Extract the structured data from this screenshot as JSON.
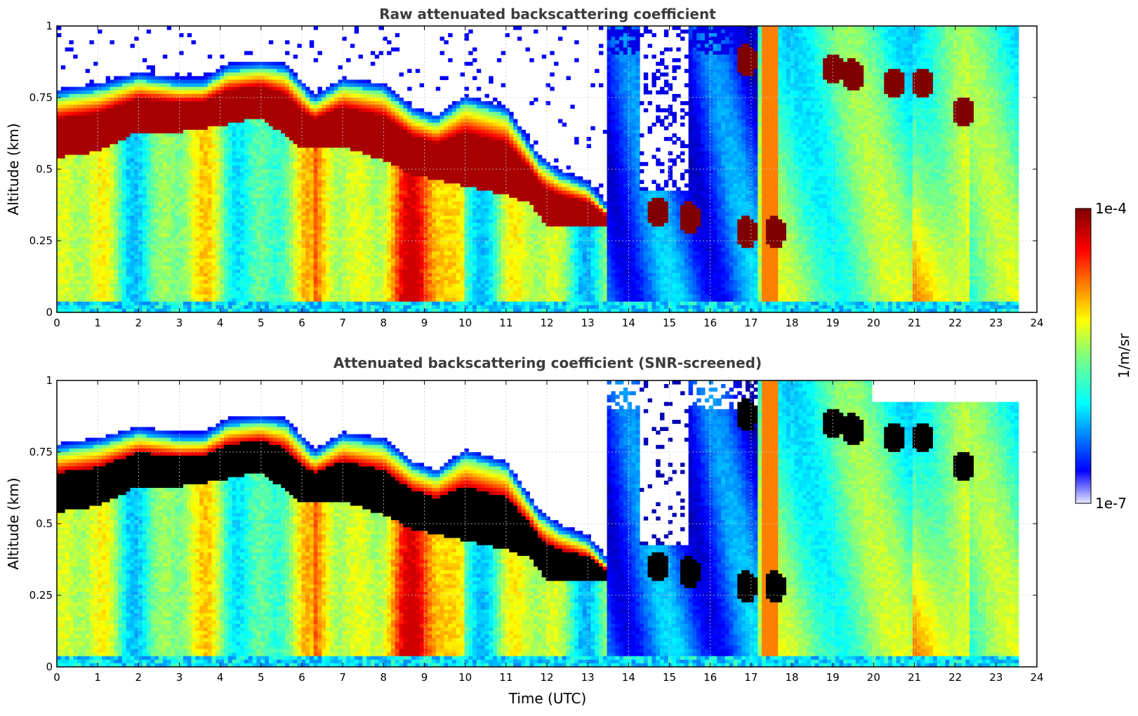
{
  "chart_data": [
    {
      "type": "heatmap",
      "title": "Raw attenuated backscattering coefficient",
      "xlabel": "",
      "ylabel": "Altitude (km)",
      "xlim": [
        0,
        24
      ],
      "ylim": [
        0,
        1
      ],
      "xticks": [
        "0",
        "1",
        "2",
        "3",
        "4",
        "5",
        "6",
        "7",
        "8",
        "9",
        "10",
        "11",
        "12",
        "13",
        "14",
        "15",
        "16",
        "17",
        "18",
        "19",
        "20",
        "21",
        "22",
        "23",
        "24"
      ],
      "yticks": [
        "0",
        "0.25",
        "0.5",
        "0.75",
        "1"
      ],
      "grid": true,
      "data_end_time": 23.55,
      "layer_top_km": [
        [
          0,
          0.78
        ],
        [
          1,
          0.8
        ],
        [
          2,
          0.84
        ],
        [
          3,
          0.82
        ],
        [
          3.6,
          0.82
        ],
        [
          4.2,
          0.87
        ],
        [
          5,
          0.88
        ],
        [
          5.6,
          0.87
        ],
        [
          6.3,
          0.76
        ],
        [
          7,
          0.82
        ],
        [
          8,
          0.8
        ],
        [
          8.7,
          0.72
        ],
        [
          9.3,
          0.69
        ],
        [
          10,
          0.76
        ],
        [
          11,
          0.72
        ],
        [
          11.8,
          0.55
        ],
        [
          12.3,
          0.5
        ],
        [
          13,
          0.46
        ],
        [
          13.5,
          0.38
        ]
      ],
      "cloud_base_km": [
        [
          0,
          0.54
        ],
        [
          1,
          0.56
        ],
        [
          2,
          0.63
        ],
        [
          3,
          0.63
        ],
        [
          4,
          0.65
        ],
        [
          5,
          0.68
        ],
        [
          6,
          0.57
        ],
        [
          7,
          0.58
        ],
        [
          8,
          0.53
        ],
        [
          8.7,
          0.48
        ],
        [
          9.3,
          0.46
        ],
        [
          10,
          0.44
        ],
        [
          11,
          0.41
        ],
        [
          11.6,
          0.38
        ],
        [
          12,
          0.3
        ],
        [
          12.7,
          0.3
        ],
        [
          13.5,
          0.3
        ]
      ],
      "isolated_clouds": [
        [
          14.7,
          0.35
        ],
        [
          15.5,
          0.33
        ],
        [
          16.9,
          0.88
        ],
        [
          16.9,
          0.28
        ],
        [
          17.6,
          0.28
        ],
        [
          19,
          0.85
        ],
        [
          19.5,
          0.83
        ],
        [
          20.5,
          0.8
        ],
        [
          21.2,
          0.8
        ],
        [
          22.2,
          0.7
        ]
      ],
      "colormap": "jet"
    },
    {
      "type": "heatmap",
      "title": "Attenuated backscattering coefficient (SNR-screened)",
      "xlabel": "Time (UTC)",
      "ylabel": "Altitude (km)",
      "xlim": [
        0,
        24
      ],
      "ylim": [
        0,
        1
      ],
      "xticks": [
        "0",
        "1",
        "2",
        "3",
        "4",
        "5",
        "6",
        "7",
        "8",
        "9",
        "10",
        "11",
        "12",
        "13",
        "14",
        "15",
        "16",
        "17",
        "18",
        "19",
        "20",
        "21",
        "22",
        "23",
        "24"
      ],
      "yticks": [
        "0",
        "0.25",
        "0.5",
        "0.75",
        "1"
      ],
      "grid": true,
      "data_end_time": 23.55,
      "saturated_color": "#000000",
      "colormap": "jet"
    }
  ],
  "colorbar": {
    "label": "1/m/sr",
    "max_label": "1e-4",
    "min_label": "1e-7",
    "scale": "log",
    "range": [
      1e-07,
      0.0001
    ]
  },
  "colors": {
    "title": "#3c3c3c",
    "grid": "#c8c8c8",
    "missing": "#ffffff",
    "saturated": "#000000"
  }
}
